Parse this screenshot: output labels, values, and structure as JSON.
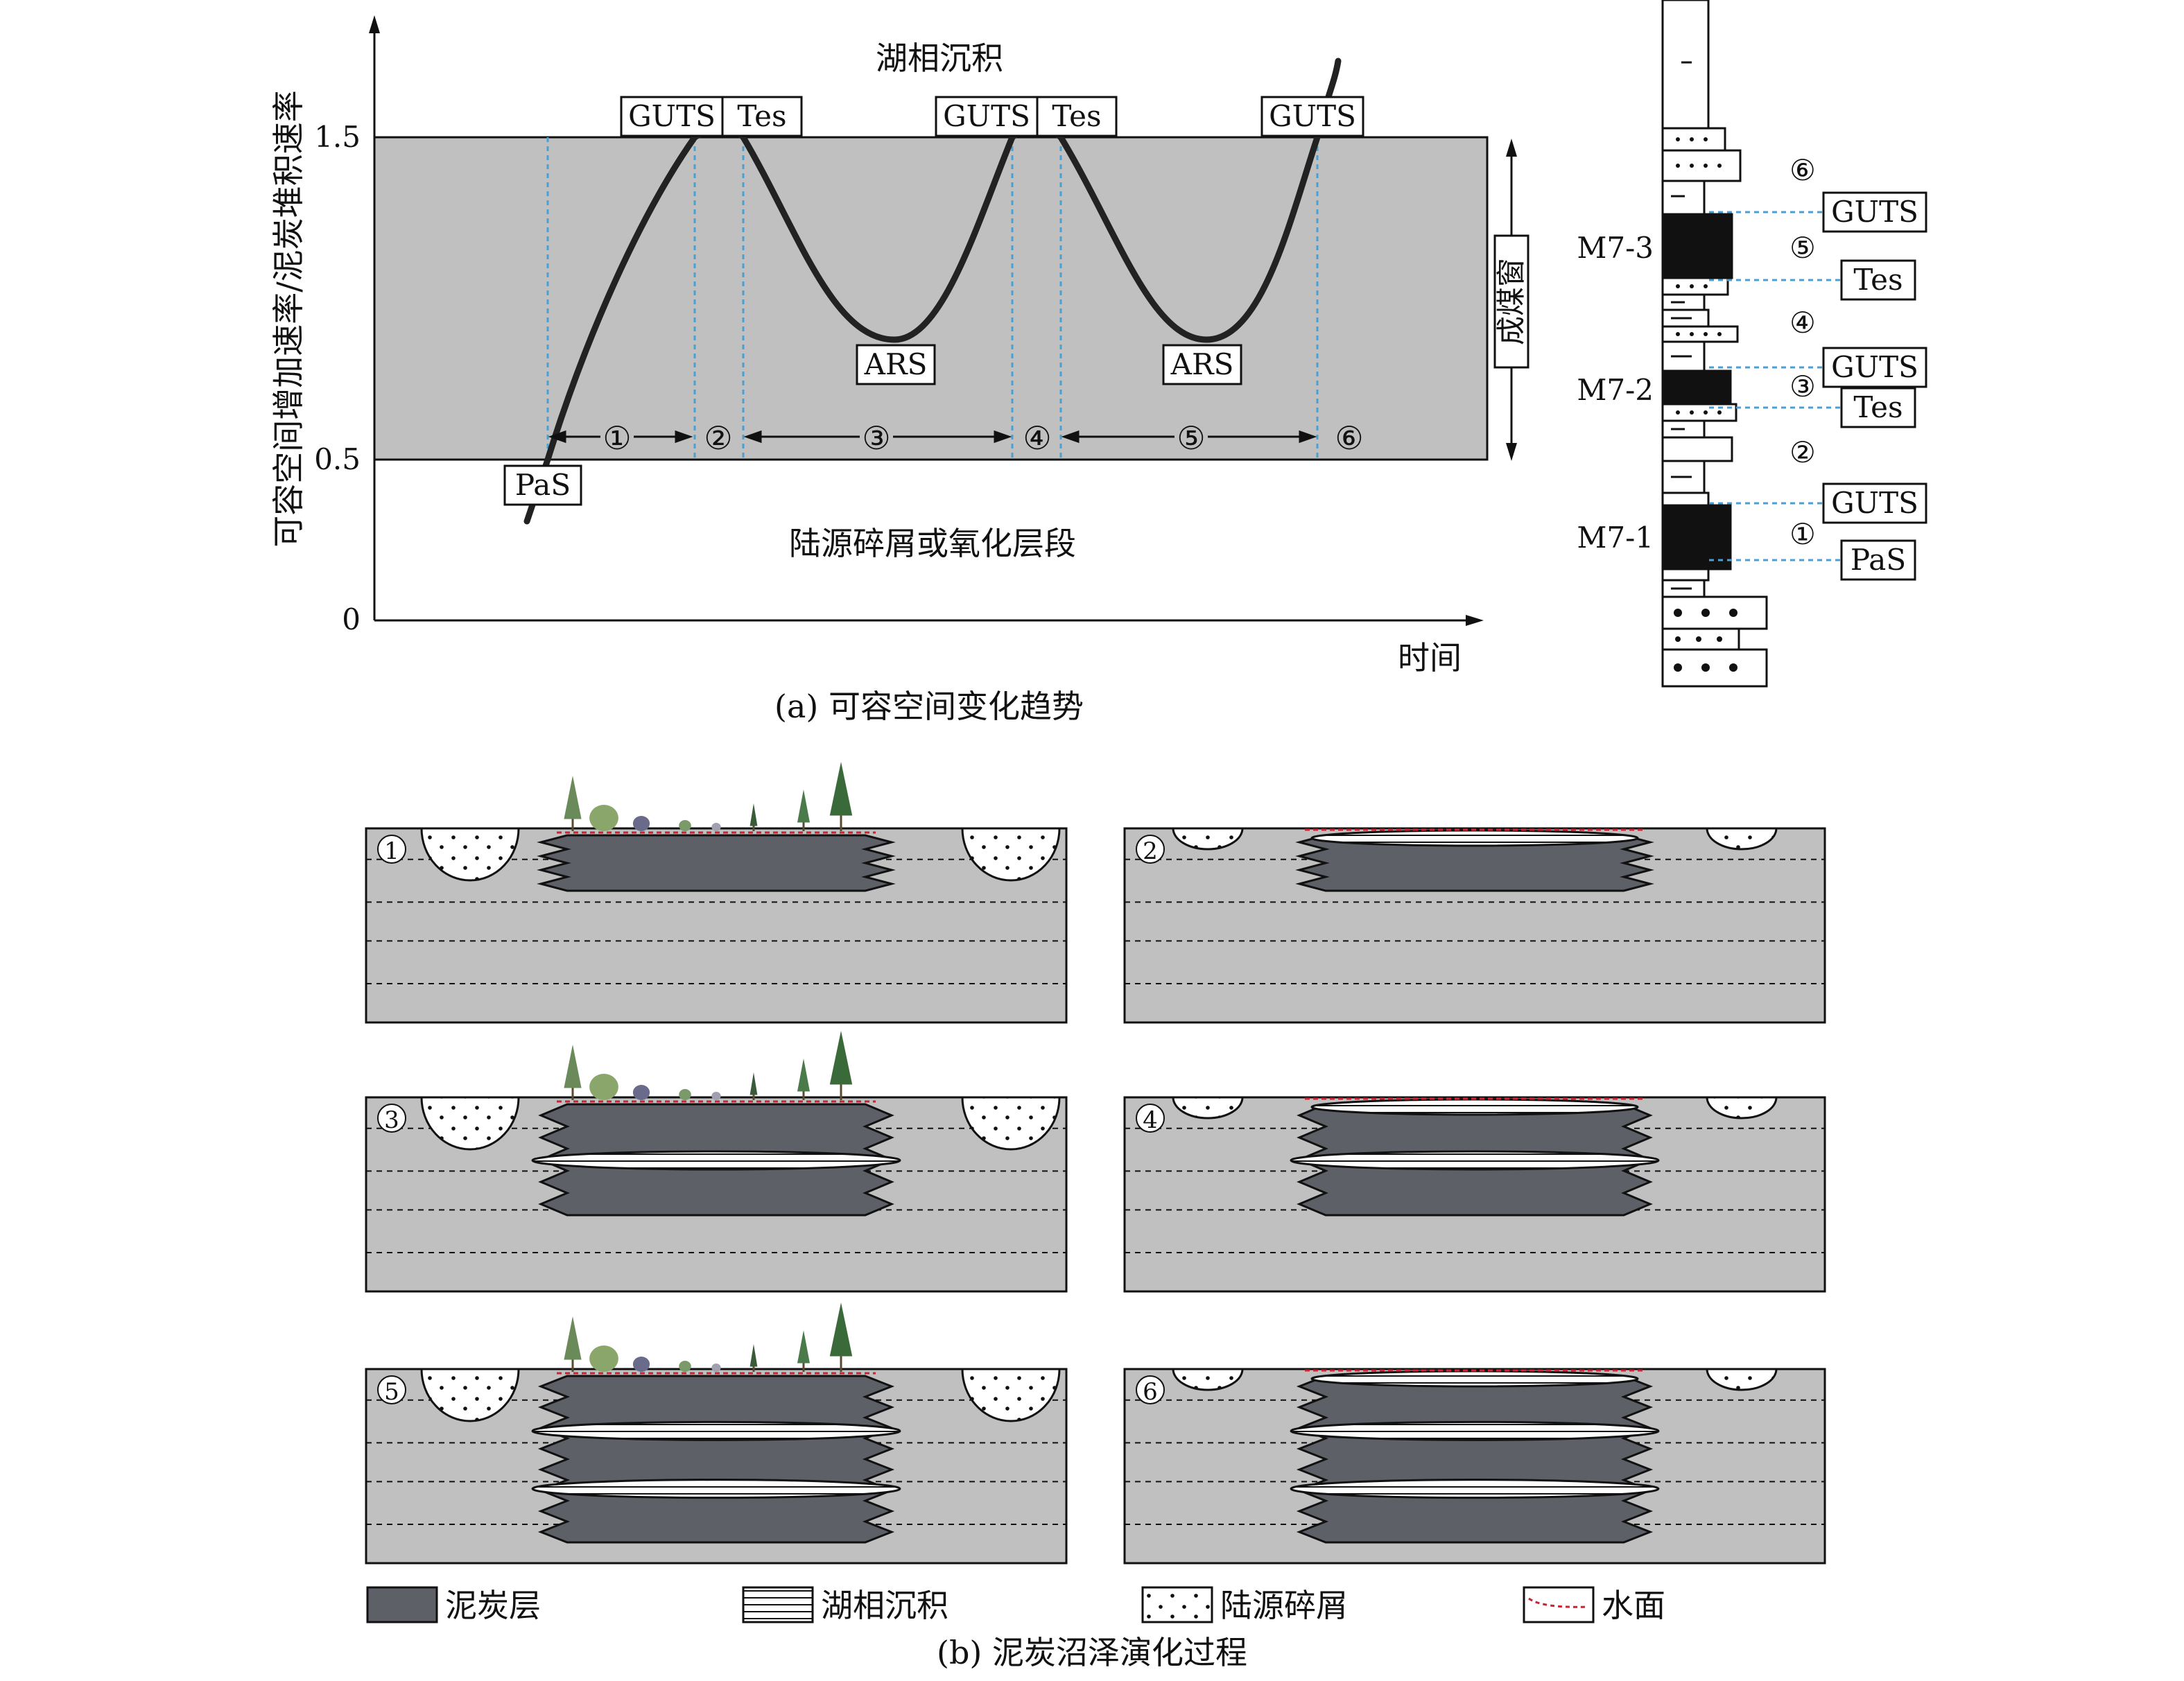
{
  "panel_a": {
    "y_axis_label": "可容空间增加速率/泥炭堆积速率",
    "x_axis_label": "时间",
    "y_ticks": [
      "1.5",
      "0.5",
      "0"
    ],
    "upper_region_label": "湖相沉积",
    "lower_region_label": "陆源碎屑或氧化层段",
    "window_label": "成煤窗",
    "markers": [
      {
        "label": "PaS"
      },
      {
        "label": "GUTS"
      },
      {
        "label": "Tes"
      },
      {
        "label": "ARS"
      },
      {
        "label": "GUTS"
      },
      {
        "label": "Tes"
      },
      {
        "label": "ARS"
      },
      {
        "label": "GUTS"
      }
    ],
    "stages": [
      "①",
      "②",
      "③",
      "④",
      "⑤",
      "⑥"
    ],
    "caption": "(a) 可容空间变化趋势"
  },
  "column": {
    "seams": [
      "M7-3",
      "M7-2",
      "M7-1"
    ],
    "stage_marks": [
      "⑥",
      "⑤",
      "④",
      "③",
      "②",
      "①"
    ],
    "surfaces": [
      "GUTS",
      "Tes",
      "GUTS",
      "Tes",
      "GUTS",
      "PaS"
    ]
  },
  "panel_b": {
    "panels": [
      "①",
      "②",
      "③",
      "④",
      "⑤",
      "⑥"
    ],
    "legend": {
      "peat": "泥炭层",
      "lake": "湖相沉积",
      "clastic": "陆源碎屑",
      "water": "水面"
    },
    "caption": "(b) 泥炭沼泽演化过程"
  },
  "colors": {
    "peat": "#5e6068",
    "background": "#c0c0c0",
    "curve": "#222222",
    "water_line": "#cc2233",
    "guide": "#4a9fd4"
  }
}
